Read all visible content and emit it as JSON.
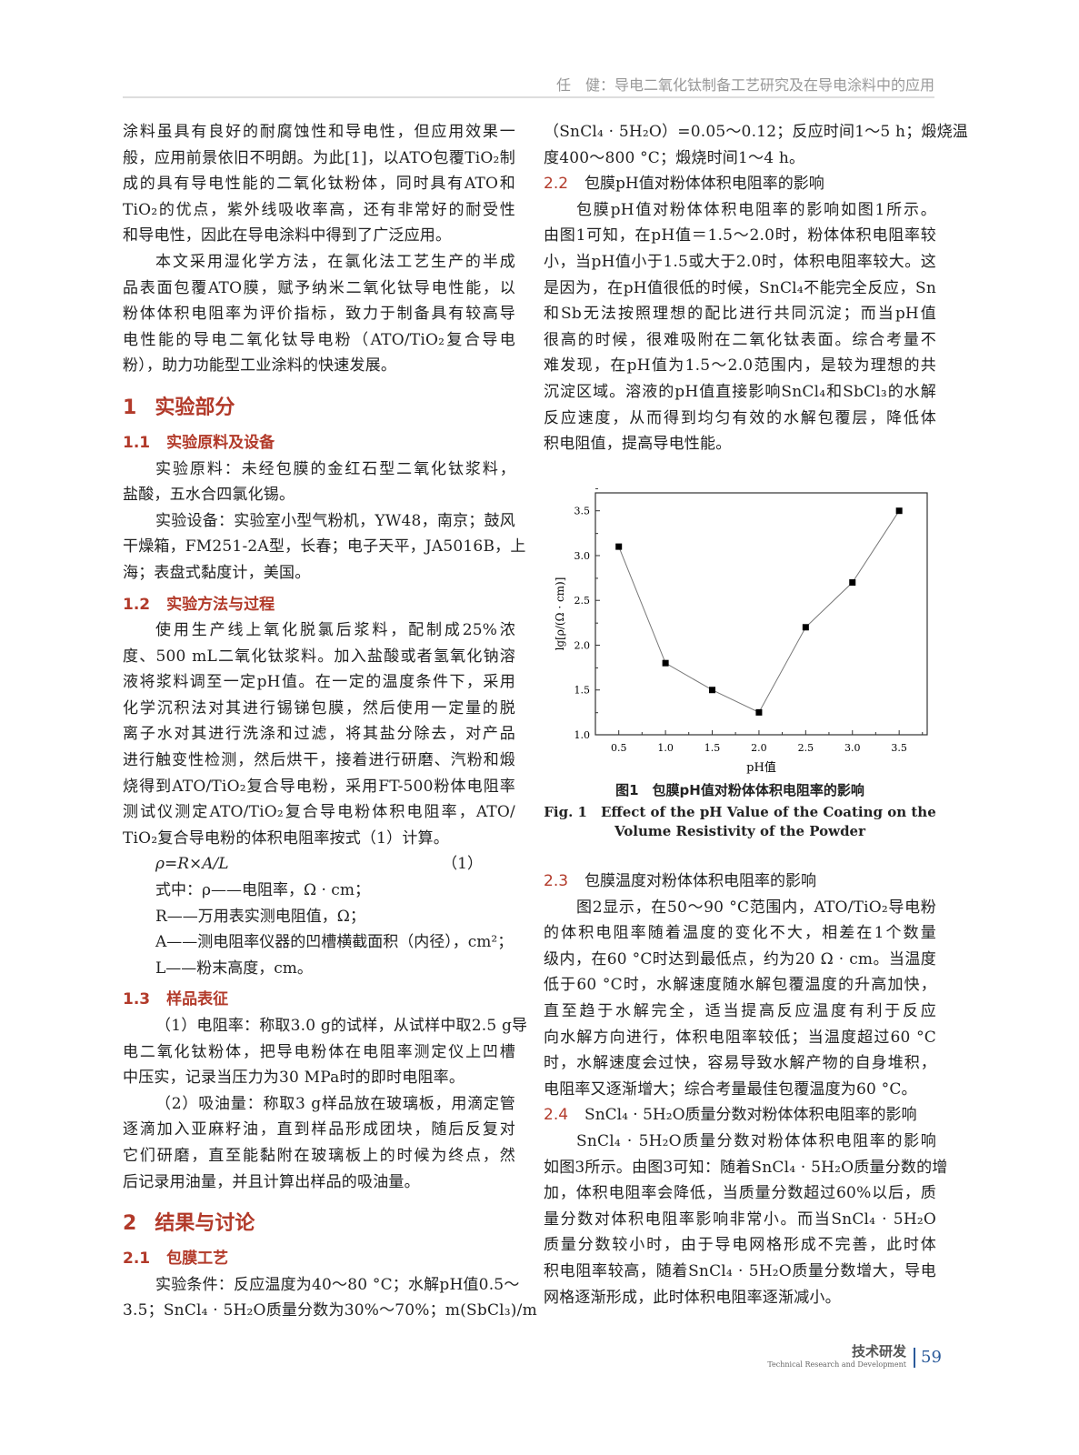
{
  "header": {
    "running_title": "任　健：导电二氧化钛制备工艺研究及在导电涂料中的应用"
  },
  "left": [
    {
      "k": "p",
      "noindent": true,
      "lines": [
        "涂料虽具有良好的耐腐蚀性和导电性，但应用效果一",
        "般，应用前景依旧不明朗。为此[1]，以ATO包覆TiO₂制",
        "成的具有导电性能的二氧化钛粉体，同时具有ATO和",
        "TiO₂的优点，紫外线吸收率高，还有非常好的耐受性",
        "和导电性，因此在导电涂料中得到了广泛应用。"
      ]
    },
    {
      "k": "p",
      "lines": [
        "本文采用湿化学方法，在氯化法工艺生产的半成",
        "品表面包覆ATO膜，赋予纳米二氧化钛导电性能，以",
        "粉体体积电阻率为评价指标，致力于制备具有较高导",
        "电性能的导电二氧化钛导电粉（ATO/TiO₂复合导电",
        "粉），助力功能型工业涂料的快速发展。"
      ]
    },
    {
      "k": "h1",
      "num": "1",
      "text": "实验部分"
    },
    {
      "k": "h2",
      "num": "1.1",
      "text": "实验原料及设备"
    },
    {
      "k": "p",
      "lines": [
        "实验原料：未经包膜的金红石型二氧化钛浆料，",
        "盐酸，五水合四氯化锡。"
      ]
    },
    {
      "k": "p",
      "lines": [
        "实验设备：实验室小型气粉机，YW48，南京；鼓风",
        "干燥箱，FM251-2A型，长春；电子天平，JA5016B，上",
        "海；表盘式黏度计，美国。"
      ]
    },
    {
      "k": "h2",
      "num": "1.2",
      "text": "实验方法与过程"
    },
    {
      "k": "p",
      "lines": [
        "使用生产线上氧化脱氯后浆料，配制成25%浓",
        "度、500 mL二氧化钛浆料。加入盐酸或者氢氧化钠溶",
        "液将浆料调至一定pH值。在一定的温度条件下，采用",
        "化学沉积法对其进行锡锑包膜，然后使用一定量的脱",
        "离子水对其进行洗涤和过滤，将其盐分除去，对产品",
        "进行触变性检测，然后烘干，接着进行研磨、汽粉和煅",
        "烧得到ATO/TiO₂复合导电粉，采用FT-500粉体电阻率",
        "测试仪测定ATO/TiO₂复合导电粉体积电阻率，ATO/",
        "TiO₂复合导电粉的体积电阻率按式（1）计算。"
      ]
    },
    {
      "k": "eq",
      "text": "ρ=R×A/L",
      "num": "（1）"
    },
    {
      "k": "def",
      "lines": [
        "式中：ρ——电阻率，Ω · cm；",
        "R——万用表实测电阻值，Ω；",
        "A——测电阻率仪器的凹槽横截面积（内径），cm²；",
        "L——粉末高度，cm。"
      ]
    },
    {
      "k": "h2",
      "num": "1.3",
      "text": "样品表征"
    },
    {
      "k": "p",
      "lines": [
        "（1）电阻率：称取3.0 g的试样，从试样中取2.5 g导",
        "电二氧化钛粉体，把导电粉体在电阻率测定仪上凹槽",
        "中压实，记录当压力为30 MPa时的即时电阻率。"
      ]
    },
    {
      "k": "p",
      "lines": [
        "（2）吸油量：称取3 g样品放在玻璃板，用滴定管",
        "逐滴加入亚麻籽油，直到样品形成团块，随后反复对",
        "它们研磨，直至能黏附在玻璃板上的时候为终点，然",
        "后记录用油量，并且计算出样品的吸油量。"
      ]
    },
    {
      "k": "h1",
      "num": "2",
      "text": "结果与讨论"
    },
    {
      "k": "h2",
      "num": "2.1",
      "text": "包膜工艺"
    },
    {
      "k": "p",
      "nolast": true,
      "lines": [
        "实验条件：反应温度为40～80 °C；水解pH值0.5～",
        "3.5；SnCl₄ · 5H₂O质量分数为30%～70%；m(SbCl₃)/m"
      ]
    }
  ],
  "right_top": [
    {
      "k": "p",
      "noindent": true,
      "lines": [
        "（SnCl₄ · 5H₂O）=0.05～0.12；反应时间1～5 h；煅烧温",
        "度400～800 °C；煅烧时间1～4 h。"
      ]
    },
    {
      "k": "h2r",
      "num": "2.2",
      "text": "包膜pH值对粉体体积电阻率的影响"
    },
    {
      "k": "p",
      "lines": [
        "包膜pH值对粉体体积电阻率的影响如图1所示。",
        "由图1可知，在pH值＝1.5～2.0时，粉体体积电阻率较",
        "小，当pH值小于1.5或大于2.0时，体积电阻率较大。这",
        "是因为，在pH值很低的时候，SnCl₄不能完全反应，Sn",
        "和Sb无法按照理想的配比进行共同沉淀；而当pH值",
        "很高的时候，很难吸附在二氧化钛表面。综合考量不",
        "难发现，在pH值为1.5～2.0范围内，是较为理想的共",
        "沉淀区域。溶液的pH值直接影响SnCl₄和SbCl₃的水解",
        "反应速度，从而得到均匀有效的水解包覆层，降低体",
        "积电阻值，提高导电性能。"
      ]
    }
  ],
  "right_bottom": [
    {
      "k": "h2r",
      "num": "2.3",
      "text": "包膜温度对粉体体积电阻率的影响"
    },
    {
      "k": "p",
      "lines": [
        "图2显示，在50～90 °C范围内，ATO/TiO₂导电粉",
        "的体积电阻率随着温度的变化不大，相差在1个数量",
        "级内，在60 °C时达到最低点，约为20 Ω · cm。当温度",
        "低于60 °C时，水解速度随水解包覆温度的升高加快，",
        "直至趋于水解完全，适当提高反应温度有利于反应",
        "向水解方向进行，体积电阻率较低；当温度超过60 °C",
        "时，水解速度会过快，容易导致水解产物的自身堆积，",
        "电阻率又逐渐增大；综合考量最佳包覆温度为60 °C。"
      ]
    },
    {
      "k": "h2r",
      "num": "2.4",
      "text": "SnCl₄ · 5H₂O质量分数对粉体体积电阻率的影响"
    },
    {
      "k": "p",
      "lines": [
        "SnCl₄ · 5H₂O质量分数对粉体体积电阻率的影响",
        "如图3所示。由图3可知：随着SnCl₄ · 5H₂O质量分数的增",
        "加，体积电阻率会降低，当质量分数超过60%以后，质",
        "量分数对体积电阻率影响非常小。而当SnCl₄ · 5H₂O",
        "质量分数较小时，由于导电网格形成不完善，此时体",
        "积电阻率较高，随着SnCl₄ · 5H₂O质量分数增大，导电",
        "网格逐渐形成，此时体积电阻率逐渐减小。"
      ]
    }
  ],
  "figure": {
    "caption_zh": "图1　包膜pH值对粉体体积电阻率的影响",
    "caption_en_1": "Fig. 1　Effect of the pH Value of the Coating on the",
    "caption_en_2": "Volume Resistivity of the Powder"
  },
  "chart_data": {
    "type": "line",
    "markers": "square",
    "xlabel": "pH值",
    "ylabel": "lg[ρ/(Ω · cm)]",
    "x": [
      0.5,
      1.0,
      1.5,
      2.0,
      2.5,
      3.0,
      3.5
    ],
    "y": [
      3.1,
      1.8,
      1.5,
      1.25,
      2.2,
      2.7,
      3.5
    ],
    "xticks": [
      "0.5",
      "1.0",
      "1.5",
      "2.0",
      "2.5",
      "3.0",
      "3.5"
    ],
    "yticks": [
      "1.0",
      "1.5",
      "2.0",
      "2.5",
      "3.0",
      "3.5"
    ],
    "xlim": [
      0.25,
      3.8
    ],
    "ylim": [
      1.0,
      3.7
    ],
    "grid": false,
    "line_color": "#777777",
    "marker_color": "#000000"
  },
  "footer": {
    "section_zh": "技术研发",
    "section_en": "Technical Research and Development",
    "page_number": "59"
  }
}
